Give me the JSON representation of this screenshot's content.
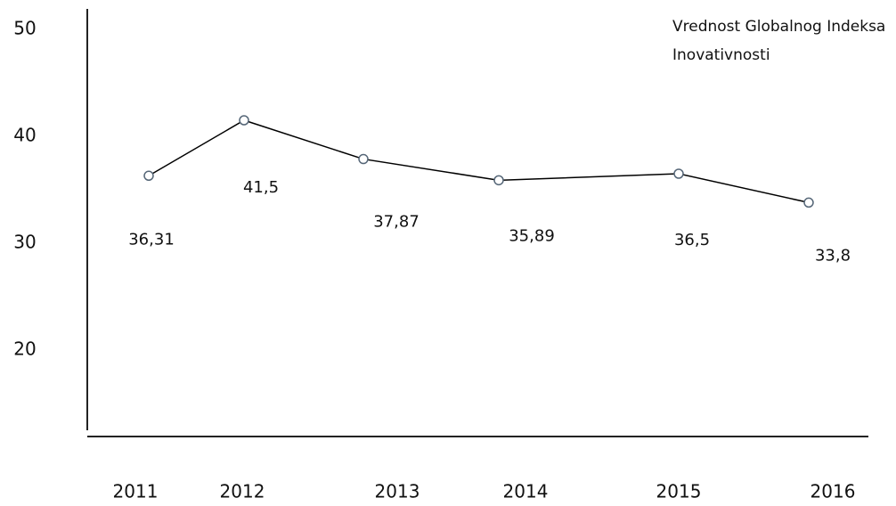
{
  "chart_data": {
    "type": "line",
    "categories": [
      "2011",
      "2012",
      "2013",
      "2014",
      "2015",
      "2016"
    ],
    "series": [
      {
        "name": "Vrednost Globalnog Indeksa Inovativnosti",
        "color": "#000000",
        "values": [
          36.31,
          41.5,
          37.87,
          35.89,
          36.5,
          33.8
        ],
        "value_labels": [
          "36,31",
          "41,5",
          "37,87",
          "35,89",
          "36,5",
          "33,8"
        ]
      }
    ],
    "ylim": [
      12,
      52
    ],
    "yticks": [
      20,
      30,
      40,
      50
    ],
    "grid": false
  }
}
